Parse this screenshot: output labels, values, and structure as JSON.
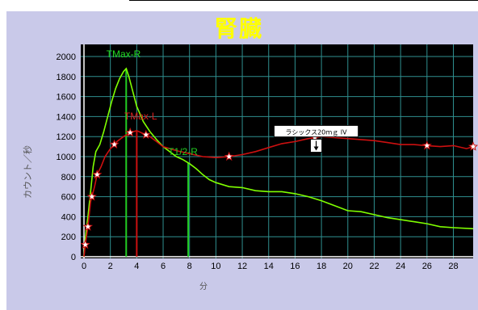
{
  "title": "腎臓",
  "chart_data": {
    "type": "line",
    "ylabel": "カウント／秒",
    "xlabel": "分",
    "xlim": [
      0,
      29.5
    ],
    "ylim": [
      0,
      2100
    ],
    "x_ticks": [
      0,
      2,
      4,
      6,
      8,
      10,
      12,
      14,
      16,
      18,
      20,
      22,
      24,
      26,
      28
    ],
    "y_ticks": [
      0,
      200,
      400,
      600,
      800,
      1000,
      1200,
      1400,
      1600,
      1800,
      2000
    ],
    "grid": true,
    "series": [
      {
        "name": "R",
        "color": "#7fff00",
        "points": [
          [
            0,
            0
          ],
          [
            0.1,
            180
          ],
          [
            0.3,
            400
          ],
          [
            0.5,
            650
          ],
          [
            0.7,
            900
          ],
          [
            0.9,
            1050
          ],
          [
            1.2,
            1120
          ],
          [
            1.5,
            1250
          ],
          [
            1.8,
            1400
          ],
          [
            2.1,
            1550
          ],
          [
            2.4,
            1680
          ],
          [
            2.7,
            1780
          ],
          [
            3.0,
            1850
          ],
          [
            3.2,
            1880
          ],
          [
            3.4,
            1800
          ],
          [
            3.7,
            1650
          ],
          [
            4.0,
            1500
          ],
          [
            4.5,
            1350
          ],
          [
            5.0,
            1250
          ],
          [
            5.5,
            1170
          ],
          [
            6.0,
            1100
          ],
          [
            6.5,
            1050
          ],
          [
            7.0,
            1000
          ],
          [
            7.5,
            970
          ],
          [
            8.0,
            930
          ],
          [
            8.5,
            880
          ],
          [
            9.0,
            820
          ],
          [
            9.5,
            770
          ],
          [
            10.0,
            740
          ],
          [
            10.5,
            720
          ],
          [
            11.0,
            700
          ],
          [
            12.0,
            690
          ],
          [
            13.0,
            660
          ],
          [
            14.0,
            650
          ],
          [
            15.0,
            650
          ],
          [
            16.0,
            630
          ],
          [
            17.0,
            600
          ],
          [
            18.0,
            560
          ],
          [
            19.0,
            510
          ],
          [
            20.0,
            460
          ],
          [
            21.0,
            450
          ],
          [
            22.0,
            420
          ],
          [
            23.0,
            390
          ],
          [
            24.0,
            370
          ],
          [
            25.0,
            350
          ],
          [
            26.0,
            330
          ],
          [
            27.0,
            300
          ],
          [
            28.0,
            290
          ],
          [
            29.5,
            280
          ]
        ]
      },
      {
        "name": "L",
        "color": "#cc1010",
        "points": [
          [
            0,
            0
          ],
          [
            0.1,
            120
          ],
          [
            0.3,
            300
          ],
          [
            0.5,
            550
          ],
          [
            0.8,
            700
          ],
          [
            1.0,
            820
          ],
          [
            1.3,
            900
          ],
          [
            1.6,
            1000
          ],
          [
            2.0,
            1080
          ],
          [
            2.5,
            1150
          ],
          [
            3.0,
            1200
          ],
          [
            3.5,
            1240
          ],
          [
            4.0,
            1260
          ],
          [
            4.5,
            1230
          ],
          [
            5.0,
            1200
          ],
          [
            5.5,
            1150
          ],
          [
            6.0,
            1100
          ],
          [
            7.0,
            1060
          ],
          [
            8.0,
            1030
          ],
          [
            9.0,
            1000
          ],
          [
            10.0,
            990
          ],
          [
            11.0,
            1000
          ],
          [
            12.0,
            1020
          ],
          [
            13.0,
            1050
          ],
          [
            14.0,
            1090
          ],
          [
            15.0,
            1130
          ],
          [
            16.0,
            1150
          ],
          [
            17.0,
            1180
          ],
          [
            18.0,
            1200
          ],
          [
            19.0,
            1190
          ],
          [
            20.0,
            1180
          ],
          [
            21.0,
            1170
          ],
          [
            22.0,
            1160
          ],
          [
            23.0,
            1140
          ],
          [
            24.0,
            1120
          ],
          [
            25.0,
            1120
          ],
          [
            26.0,
            1110
          ],
          [
            27.0,
            1100
          ],
          [
            28.0,
            1110
          ],
          [
            29.0,
            1080
          ],
          [
            29.5,
            1100
          ]
        ]
      }
    ],
    "markers_x": [
      0.1,
      0.3,
      0.6,
      1.0,
      2.3,
      3.5,
      4.7,
      11.0,
      17.5,
      26.0,
      29.5
    ],
    "vlines": [
      {
        "x": 3.2,
        "color": "#22cc22",
        "label": "TMax-R",
        "top": 1880
      },
      {
        "x": 4.0,
        "color": "#cc1010",
        "label": "TMax-L",
        "top": 1260
      },
      {
        "x": 7.9,
        "color": "#22cc22",
        "label": "T1/2-R",
        "top": 940
      }
    ],
    "annotation": {
      "text": "ラシックス20ｍｇ IV",
      "x": 17.6,
      "y": 1230
    }
  }
}
